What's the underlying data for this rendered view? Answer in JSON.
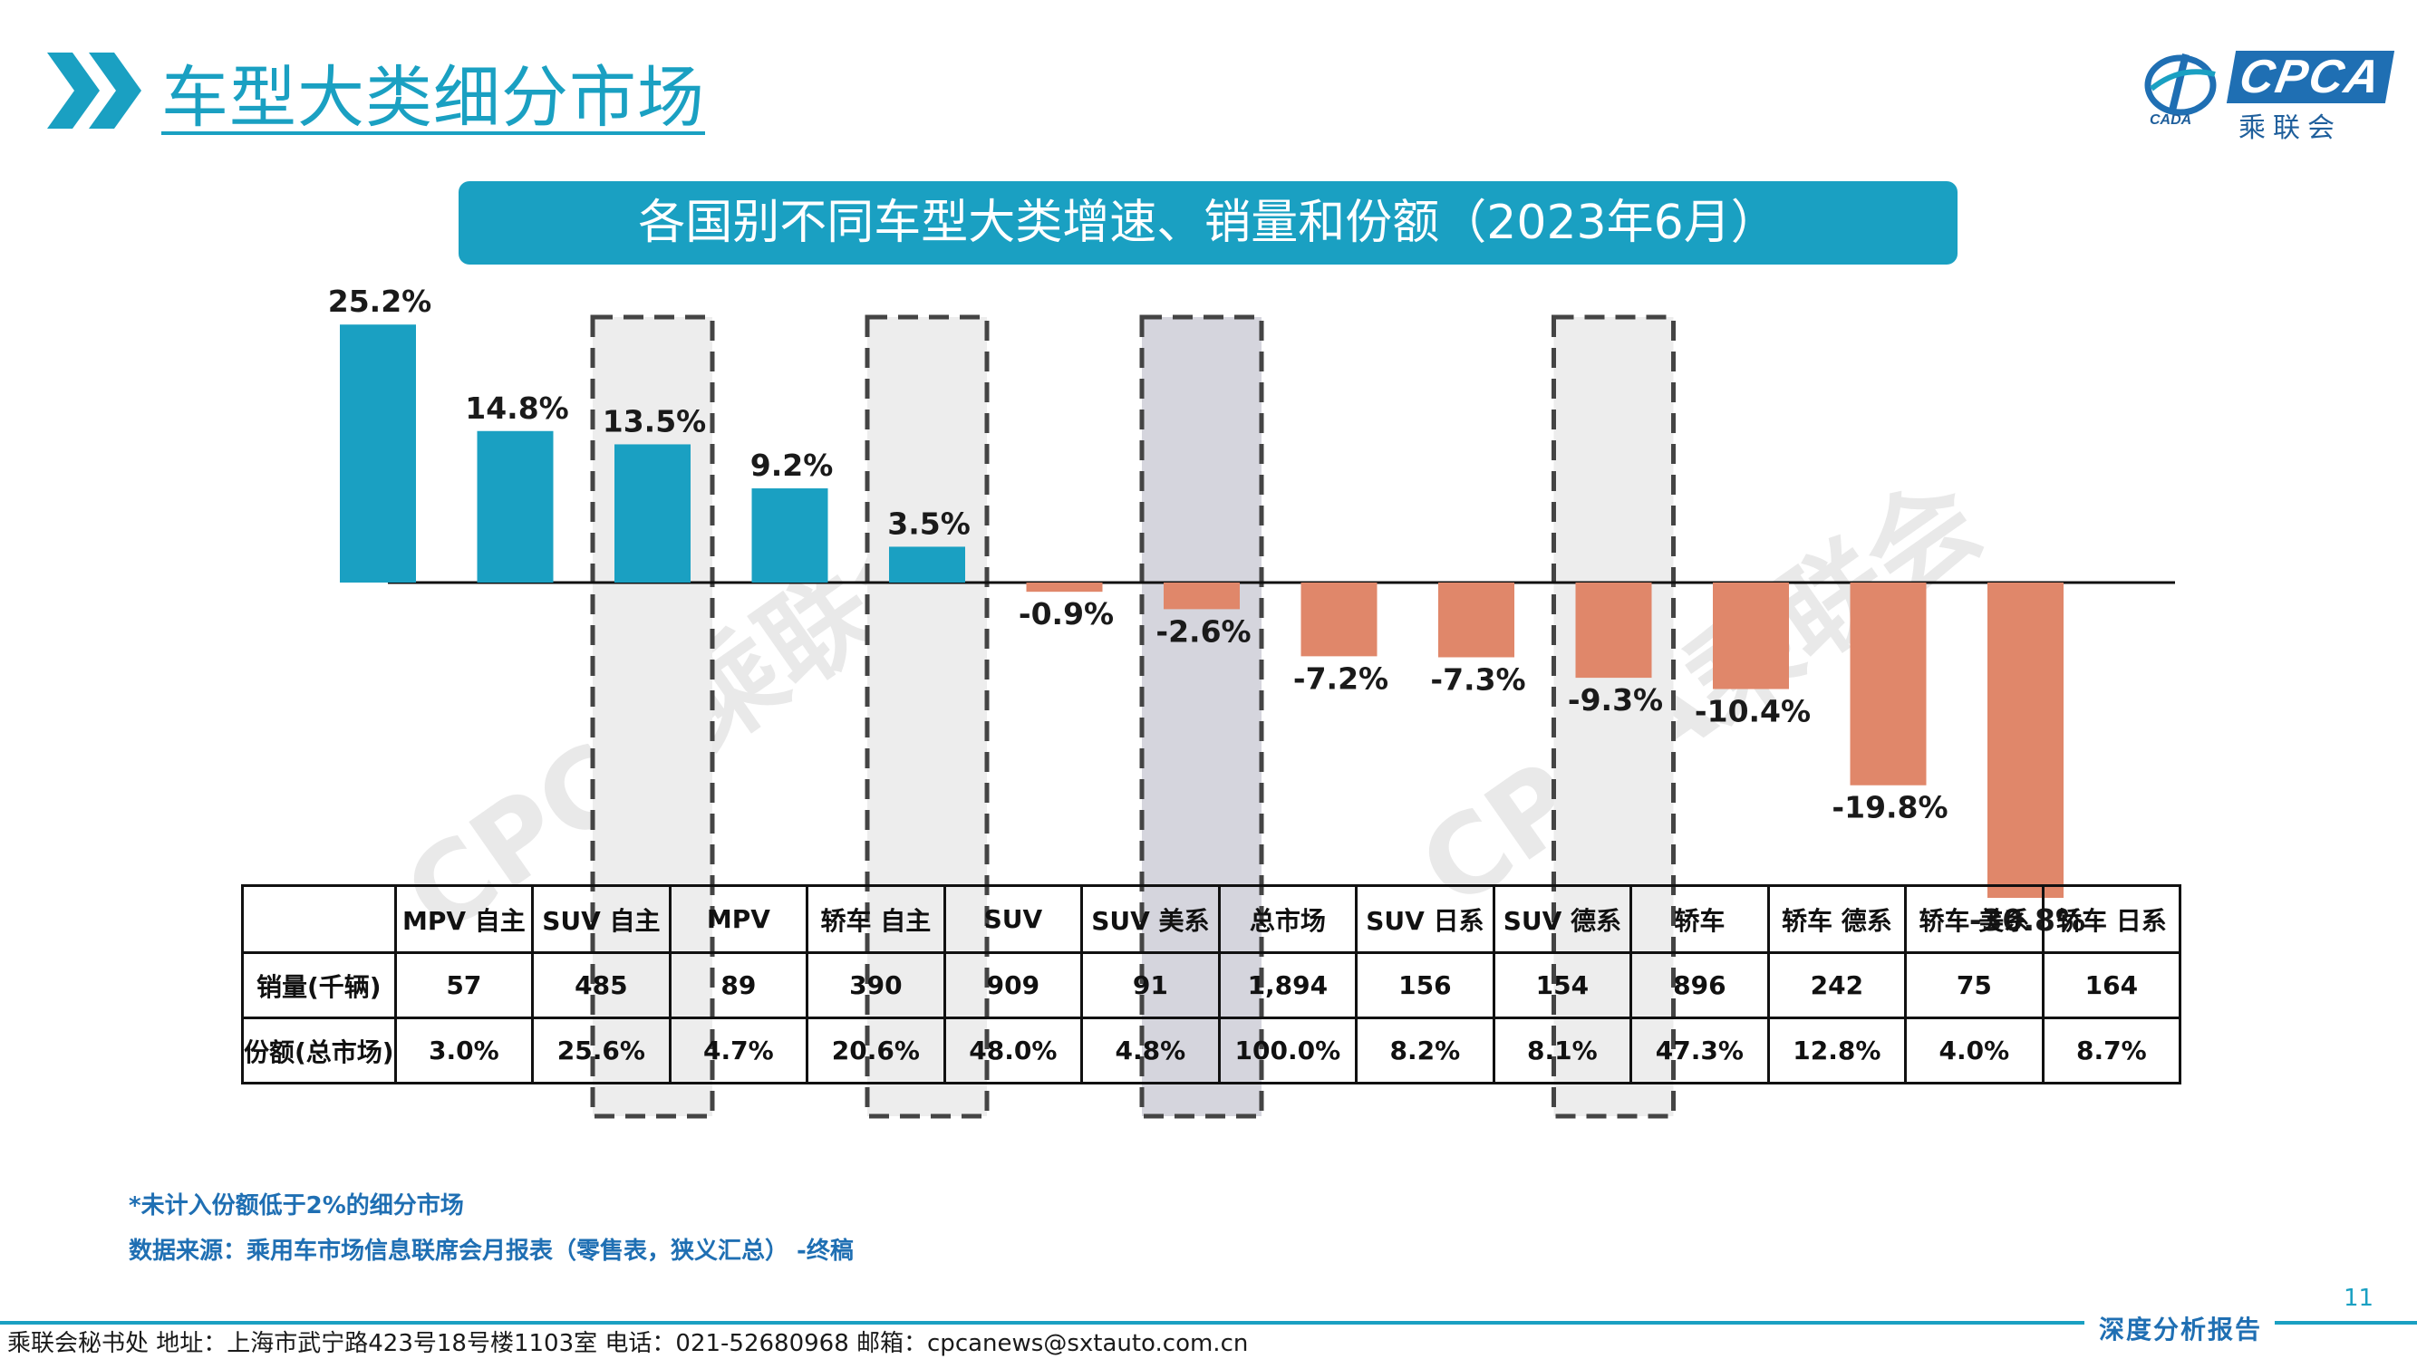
{
  "header": {
    "title": "车型大类细分市场",
    "logo_text": "CPCA",
    "logo_subtitle": "乘联会",
    "logo_small": "CADA"
  },
  "banner": {
    "text": "各国别不同车型大类增速、销量和份额（2023年6月）"
  },
  "colors": {
    "accent": "#1aa0c2",
    "positive_bar": "#1aa0c2",
    "negative_bar": "#e0876a",
    "highlight_box": "#ededed",
    "total_box": "#d5d5dd"
  },
  "chart_data": {
    "type": "bar",
    "categories": [
      "MPV 自主",
      "SUV 自主",
      "MPV",
      "轿车 自主",
      "SUV",
      "SUV 美系",
      "总市场",
      "SUV 日系",
      "SUV 德系",
      "轿车",
      "轿车 德系",
      "轿车 美系",
      "轿车 日系"
    ],
    "values": [
      25.2,
      14.8,
      13.5,
      9.2,
      3.5,
      -0.9,
      -2.6,
      -7.2,
      -7.3,
      -9.3,
      -10.4,
      -19.8,
      -30.8
    ],
    "value_labels": [
      "25.2%",
      "14.8%",
      "13.5%",
      "9.2%",
      "3.5%",
      "-0.9%",
      "-2.6%",
      "-7.2%",
      "-7.3%",
      "-9.3%",
      "-10.4%",
      "-19.8%",
      "-30.8%"
    ],
    "ylim": [
      -31,
      26
    ],
    "highlighted_categories": [
      "MPV",
      "SUV",
      "总市场",
      "轿车"
    ],
    "stray_label": "0",
    "watermark": "CPCA乘联会"
  },
  "table": {
    "rows": [
      {
        "label": "销量(千辆)",
        "values": [
          "57",
          "485",
          "89",
          "390",
          "909",
          "91",
          "1,894",
          "156",
          "154",
          "896",
          "242",
          "75",
          "164"
        ]
      },
      {
        "label": "份额(总市场)",
        "values": [
          "3.0%",
          "25.6%",
          "4.7%",
          "20.6%",
          "48.0%",
          "4.8%",
          "100.0%",
          "8.2%",
          "8.1%",
          "47.3%",
          "12.8%",
          "4.0%",
          "8.7%"
        ]
      }
    ]
  },
  "notes": {
    "note1": "*未计入份额低于2%的细分市场",
    "note2": "数据来源：乘用车市场信息联席会月报表（零售表，狭义汇总） -终稿"
  },
  "footer": {
    "page_number": "11",
    "contact": "乘联会秘书处   地址：上海市武宁路423号18号楼1103室  电话：021-52680968   邮箱：cpcanews@sxtauto.com.cn",
    "tag": "深度分析报告"
  }
}
